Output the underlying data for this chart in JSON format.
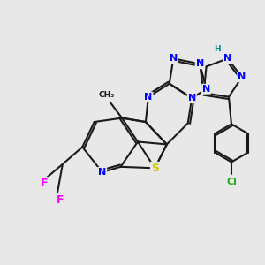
{
  "bg_color": "#e8e8e8",
  "bond_color": "#1a1a1a",
  "N_color": "#0000ff",
  "S_color": "#cccc00",
  "F_color": "#ff00ff",
  "Cl_color": "#22aa22",
  "H_color": "#008888",
  "line_width": 1.5,
  "font_size": 8.0,
  "xlim": [
    0,
    10
  ],
  "ylim": [
    0,
    10
  ]
}
